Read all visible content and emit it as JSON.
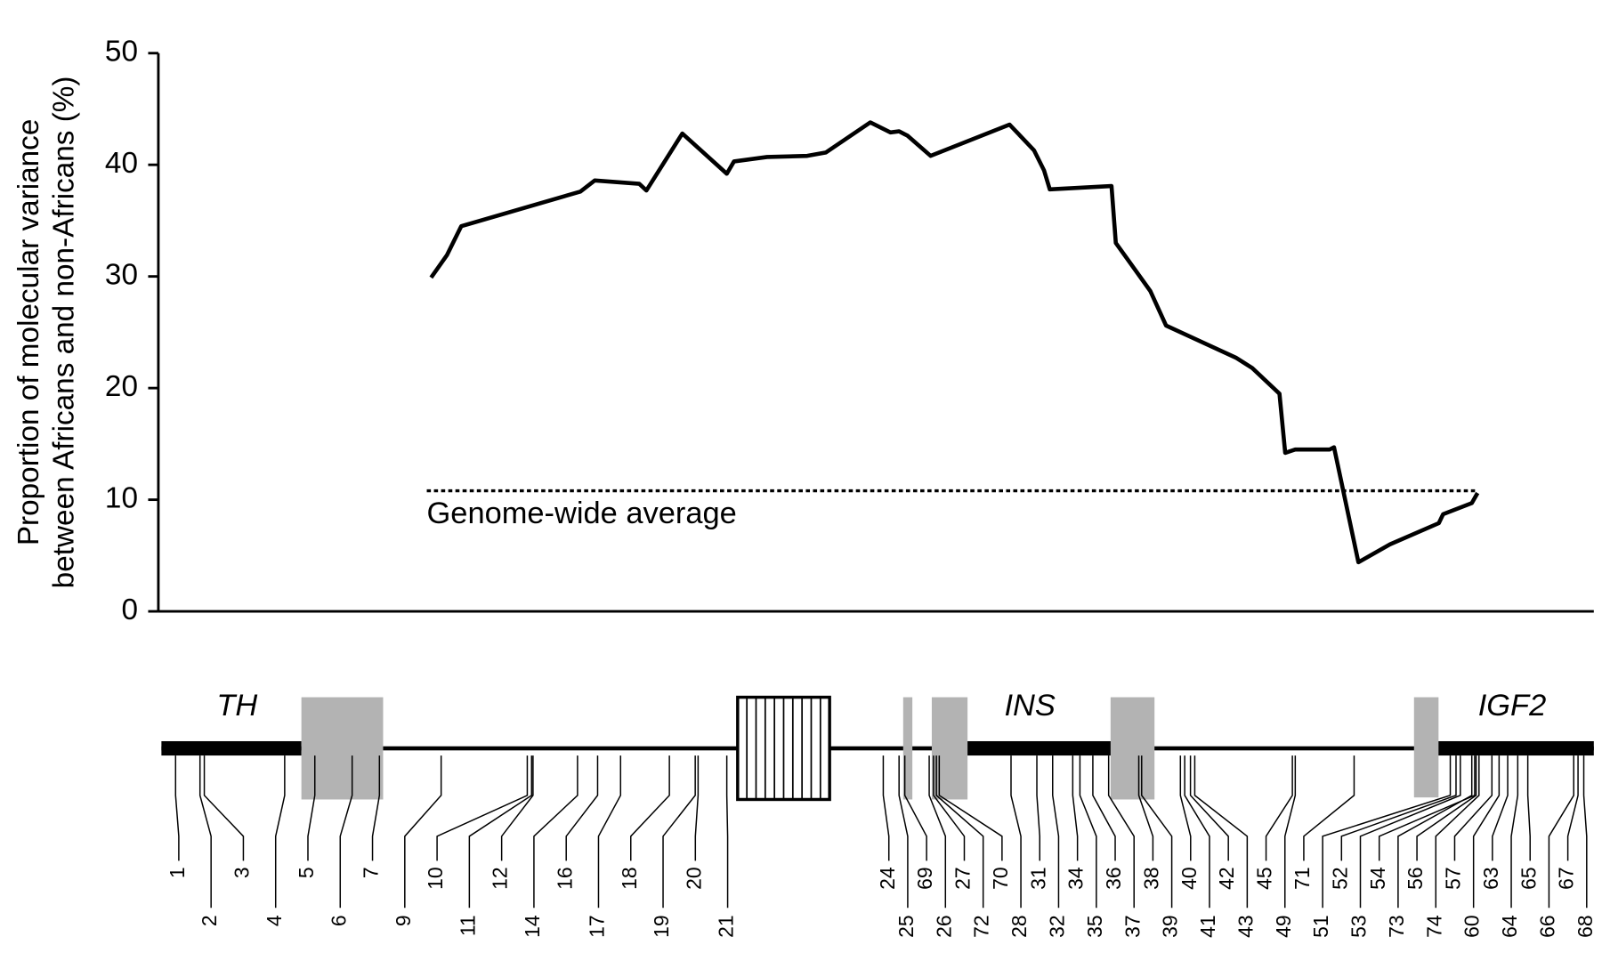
{
  "chart_data": {
    "type": "line",
    "ylabel": [
      "Proportion of molecular variance",
      "between Africans and non-Africans (%)"
    ],
    "color": "#000000",
    "xlim": [
      0,
      100
    ],
    "ylim": [
      0,
      50
    ],
    "yticks": [
      0,
      10,
      20,
      30,
      40,
      50
    ],
    "x": [
      19.0,
      20.1,
      21.1,
      29.4,
      30.4,
      33.5,
      34.0,
      36.5,
      39.6,
      40.1,
      42.4,
      45.2,
      46.5,
      49.6,
      51.0,
      51.6,
      52.2,
      53.8,
      59.3,
      61.0,
      61.7,
      62.1,
      66.4,
      66.7,
      69.1,
      70.2,
      75.1,
      76.2,
      78.1,
      78.5,
      79.2,
      81.6,
      81.9,
      83.6,
      85.8,
      89.2,
      89.5,
      91.5,
      91.9
    ],
    "values": [
      29.9,
      31.9,
      34.5,
      37.6,
      38.6,
      38.3,
      37.7,
      42.8,
      39.2,
      40.3,
      40.7,
      40.8,
      41.1,
      43.8,
      42.9,
      43.0,
      42.6,
      40.8,
      43.6,
      41.3,
      39.5,
      37.8,
      38.1,
      33.0,
      28.7,
      25.6,
      22.7,
      21.8,
      19.5,
      14.2,
      14.5,
      14.5,
      14.7,
      4.4,
      6.0,
      7.9,
      8.7,
      9.7,
      10.6
    ],
    "reference_line": {
      "value": 10.8,
      "x": [
        18.7,
        91.9
      ],
      "label": "Genome-wide average"
    },
    "gene_labels": [
      "TH",
      "INS",
      "IGF2"
    ],
    "markers": [
      {
        "label": "1",
        "position": 1.2
      },
      {
        "label": "2",
        "position": 2.9
      },
      {
        "label": "3",
        "position": 3.2
      },
      {
        "label": "4",
        "position": 8.8
      },
      {
        "label": "5",
        "position": 10.9
      },
      {
        "label": "6",
        "position": 13.5
      },
      {
        "label": "7",
        "position": 15.4
      },
      {
        "label": "9",
        "position": 19.7
      },
      {
        "label": "10",
        "position": 25.7
      },
      {
        "label": "11",
        "position": 26.0
      },
      {
        "label": "12",
        "position": 26.1
      },
      {
        "label": "14",
        "position": 29.2
      },
      {
        "label": "16",
        "position": 30.6
      },
      {
        "label": "17",
        "position": 32.2
      },
      {
        "label": "18",
        "position": 35.6
      },
      {
        "label": "19",
        "position": 37.4
      },
      {
        "label": "20",
        "position": 37.6
      },
      {
        "label": "21",
        "position": 39.6
      },
      {
        "label": "24",
        "position": 50.5
      },
      {
        "label": "25",
        "position": 51.6
      },
      {
        "label": "69",
        "position": 52.0
      },
      {
        "label": "26",
        "position": 53.7
      },
      {
        "label": "27",
        "position": 54.0
      },
      {
        "label": "72",
        "position": 54.2
      },
      {
        "label": "70",
        "position": 54.4
      },
      {
        "label": "28",
        "position": 59.4
      },
      {
        "label": "31",
        "position": 61.2
      },
      {
        "label": "32",
        "position": 62.3
      },
      {
        "label": "34",
        "position": 63.7
      },
      {
        "label": "35",
        "position": 64.2
      },
      {
        "label": "36",
        "position": 65.1
      },
      {
        "label": "37",
        "position": 66.2
      },
      {
        "label": "38",
        "position": 68.3
      },
      {
        "label": "39",
        "position": 68.5
      },
      {
        "label": "40",
        "position": 71.2
      },
      {
        "label": "41",
        "position": 71.5
      },
      {
        "label": "42",
        "position": 71.9
      },
      {
        "label": "43",
        "position": 72.2
      },
      {
        "label": "45",
        "position": 79.0
      },
      {
        "label": "49",
        "position": 79.2
      },
      {
        "label": "71",
        "position": 83.3
      },
      {
        "label": "51",
        "position": 90.0
      },
      {
        "label": "52",
        "position": 90.4
      },
      {
        "label": "53",
        "position": 90.7
      },
      {
        "label": "54",
        "position": 91.7
      },
      {
        "label": "73",
        "position": 91.5
      },
      {
        "label": "56",
        "position": 91.8
      },
      {
        "label": "74",
        "position": 92.0
      },
      {
        "label": "57",
        "position": 92.9
      },
      {
        "label": "60",
        "position": 93.4
      },
      {
        "label": "63",
        "position": 94.0
      },
      {
        "label": "64",
        "position": 94.7
      },
      {
        "label": "65",
        "position": 95.4
      },
      {
        "label": "66",
        "position": 98.6
      },
      {
        "label": "67",
        "position": 98.9
      },
      {
        "label": "68",
        "position": 99.3
      }
    ]
  }
}
